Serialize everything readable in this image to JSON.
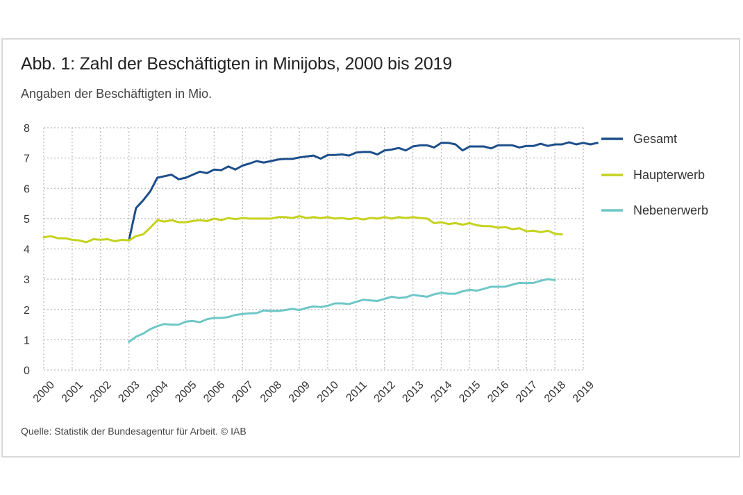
{
  "title": "Abb. 1: Zahl der Beschäftigten in Minijobs, 2000 bis 2019",
  "subtitle": "Angaben der Beschäftigten in Mio.",
  "source": "Quelle: Statistik der Bundesagentur für Arbeit. © IAB",
  "chart_data": {
    "type": "line",
    "title": "Abb. 1: Zahl der Beschäftigten in Minijobs, 2000 bis 2019",
    "subtitle": "Angaben der Beschäftigten in Mio.",
    "xlabel": "",
    "ylabel": "",
    "ylim": [
      0,
      8
    ],
    "yticks": [
      "0",
      "1",
      "2",
      "3",
      "4",
      "5",
      "6",
      "7",
      "8"
    ],
    "xlim": [
      2000,
      2019
    ],
    "xticks": [
      "2000",
      "2001",
      "2002",
      "2003",
      "2004",
      "2005",
      "2006",
      "2007",
      "2008",
      "2009",
      "2010",
      "2011",
      "2012",
      "2013",
      "2014",
      "2015",
      "2016",
      "2017",
      "2018",
      "2019"
    ],
    "grid": true,
    "legend_position": "right",
    "x_step": 0.25,
    "series": [
      {
        "name": "Gesamt",
        "color": "#1c4e8a",
        "x_start": 2003.0,
        "values": [
          4.28,
          5.35,
          5.6,
          5.9,
          6.35,
          6.4,
          6.45,
          6.3,
          6.35,
          6.45,
          6.55,
          6.5,
          6.62,
          6.6,
          6.72,
          6.62,
          6.75,
          6.82,
          6.9,
          6.85,
          6.9,
          6.95,
          6.97,
          6.97,
          7.02,
          7.05,
          7.08,
          6.98,
          7.1,
          7.1,
          7.12,
          7.08,
          7.18,
          7.2,
          7.2,
          7.12,
          7.25,
          7.28,
          7.33,
          7.25,
          7.38,
          7.42,
          7.42,
          7.35,
          7.5,
          7.5,
          7.45,
          7.25,
          7.38,
          7.38,
          7.38,
          7.32,
          7.42,
          7.42,
          7.42,
          7.35,
          7.4,
          7.4,
          7.47,
          7.4,
          7.45,
          7.45,
          7.52,
          7.45,
          7.5,
          7.45,
          7.5
        ]
      },
      {
        "name": "Haupterwerb",
        "color": "#c5d21e",
        "x_start": 2000.0,
        "values": [
          4.38,
          4.42,
          4.35,
          4.35,
          4.3,
          4.28,
          4.22,
          4.32,
          4.3,
          4.32,
          4.25,
          4.3,
          4.28,
          4.42,
          4.48,
          4.7,
          4.95,
          4.9,
          4.95,
          4.88,
          4.88,
          4.92,
          4.95,
          4.92,
          5.0,
          4.95,
          5.02,
          4.98,
          5.02,
          5.0,
          5.0,
          5.0,
          5.0,
          5.05,
          5.05,
          5.02,
          5.08,
          5.02,
          5.05,
          5.02,
          5.05,
          5.0,
          5.02,
          4.98,
          5.02,
          4.97,
          5.02,
          5.0,
          5.05,
          5.0,
          5.05,
          5.02,
          5.05,
          5.02,
          5.0,
          4.85,
          4.88,
          4.82,
          4.85,
          4.8,
          4.85,
          4.78,
          4.75,
          4.75,
          4.7,
          4.72,
          4.65,
          4.68,
          4.58,
          4.6,
          4.55,
          4.6,
          4.5,
          4.48
        ]
      },
      {
        "name": "Nebenerwerb",
        "color": "#6fc7c7",
        "x_start": 2003.0,
        "values": [
          0.93,
          1.1,
          1.2,
          1.35,
          1.45,
          1.52,
          1.5,
          1.5,
          1.6,
          1.62,
          1.58,
          1.68,
          1.72,
          1.72,
          1.75,
          1.82,
          1.85,
          1.87,
          1.88,
          1.97,
          1.95,
          1.95,
          1.98,
          2.02,
          1.98,
          2.05,
          2.1,
          2.08,
          2.12,
          2.2,
          2.2,
          2.18,
          2.25,
          2.32,
          2.3,
          2.28,
          2.35,
          2.42,
          2.38,
          2.4,
          2.48,
          2.45,
          2.42,
          2.5,
          2.55,
          2.52,
          2.52,
          2.6,
          2.65,
          2.62,
          2.68,
          2.75,
          2.75,
          2.75,
          2.82,
          2.88,
          2.87,
          2.88,
          2.95,
          3.0,
          2.97
        ]
      }
    ]
  }
}
